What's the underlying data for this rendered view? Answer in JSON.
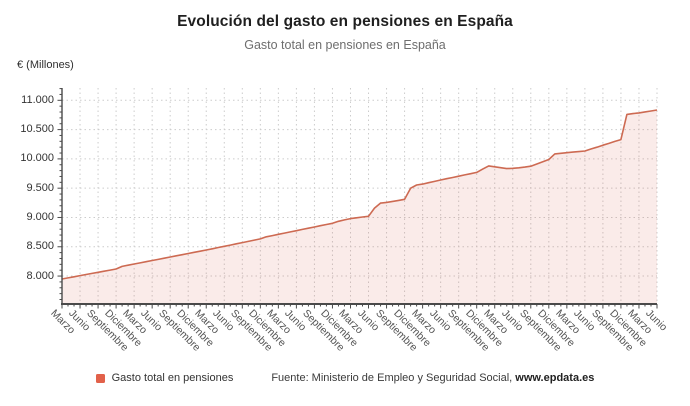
{
  "chart": {
    "title": "Evolución del gasto en pensiones en España",
    "subtitle": "Gasto total en pensiones en España",
    "y_axis_unit": "€ (Millones)",
    "legend_label": "Gasto total en pensiones",
    "source_prefix": "Fuente: Ministerio de Empleo y Seguridad Social, ",
    "source_site": "www.epdata.es",
    "colors": {
      "series_line": "#cd6a52",
      "legend_swatch": "#e2614a",
      "area_fill": "#d96752",
      "area_fill_opacity": 0.13,
      "grid": "#cccccc",
      "axis": "#4a4a4a",
      "title_text": "#1f1f1f",
      "subtitle_text": "#6e6e6e"
    }
  },
  "chart_data": {
    "type": "area",
    "title": "Evolución del gasto en pensiones en España",
    "subtitle": "Gasto total en pensiones en España",
    "ylabel": "€ (Millones)",
    "series_name": "Gasto total en pensiones",
    "x_labels": [
      "Marzo",
      "Junio",
      "Septiembre",
      "Diciembre",
      "Marzo",
      "Junio",
      "Septiembre",
      "Diciembre",
      "Marzo",
      "Junio",
      "Septiembre",
      "Diciembre",
      "Marzo",
      "Junio",
      "Septiembre",
      "Diciembre",
      "Marzo",
      "Junio",
      "Septiembre",
      "Diciembre",
      "Marzo",
      "Junio",
      "Septiembre",
      "Diciembre",
      "Marzo",
      "Junio",
      "Septiembre",
      "Diciembre",
      "Marzo",
      "Junio",
      "Septiembre",
      "Diciembre",
      "Marzo",
      "Junio"
    ],
    "points_per_label": 3,
    "x_label_rotation_deg": 45,
    "values": [
      7950,
      7969,
      7988,
      8007,
      8026,
      8045,
      8064,
      8083,
      8102,
      8121,
      8165,
      8185,
      8205,
      8225,
      8245,
      8265,
      8285,
      8305,
      8325,
      8345,
      8365,
      8385,
      8405,
      8425,
      8445,
      8466,
      8487,
      8508,
      8529,
      8550,
      8571,
      8592,
      8613,
      8634,
      8670,
      8691,
      8712,
      8733,
      8754,
      8775,
      8796,
      8817,
      8838,
      8859,
      8880,
      8901,
      8935,
      8958,
      8980,
      8995,
      9008,
      9020,
      9160,
      9245,
      9258,
      9275,
      9292,
      9310,
      9500,
      9555,
      9570,
      9593,
      9616,
      9640,
      9662,
      9683,
      9705,
      9727,
      9748,
      9770,
      9825,
      9880,
      9865,
      9850,
      9835,
      9840,
      9848,
      9860,
      9875,
      9913,
      9950,
      9990,
      10085,
      10095,
      10105,
      10115,
      10125,
      10135,
      10168,
      10200,
      10233,
      10265,
      10298,
      10330,
      10760,
      10773,
      10785,
      10802,
      10818,
      10835
    ],
    "yticks": [
      8000,
      8500,
      9000,
      9500,
      10000,
      10500,
      11000
    ],
    "ytick_labels": [
      "8.000",
      "8.500",
      "9.000",
      "9.500",
      "10.000",
      "10.500",
      "11.000"
    ],
    "ylim": [
      7523,
      11210
    ],
    "grid": true,
    "legend_position": "bottom"
  }
}
